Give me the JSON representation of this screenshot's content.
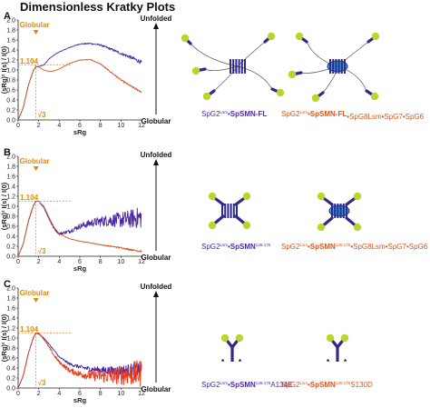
{
  "figure_title": "Dimensionless Kratky Plots",
  "labels": {
    "unfolded": "Unfolded",
    "globular": "Globular",
    "globular_marker": "Globular",
    "peak_x": "√3",
    "peak_y": "1.104",
    "xlabel": "sRg",
    "ylabel": "(sRg)² I(s) / I(0)"
  },
  "colors": {
    "series_blue": "#4b2aa3",
    "series_red_a": "#d4581c",
    "series_red_b": "#e8381d",
    "annotation": "#e08a12",
    "axis": "#222222",
    "molecule_blue": "#2e2a8c",
    "molecule_green": "#b9d62f",
    "molecule_cyan": "#2ba6d8"
  },
  "chart_data": [
    {
      "panel": "A",
      "type": "line",
      "xlabel": "sRg",
      "ylabel": "(sRg)² I(s) / I(0)",
      "xlim": [
        0,
        12
      ],
      "ylim": [
        0,
        2.0
      ],
      "xticks": [
        "0",
        "2",
        "4",
        "6",
        "8",
        "10",
        "12"
      ],
      "yticks": [
        "0.0",
        "0.2",
        "0.4",
        "0.6",
        "0.8",
        "1.0",
        "1.2",
        "1.4",
        "1.6",
        "1.8",
        "2.0"
      ],
      "series": [
        {
          "name": "SpG2-SpSMN-FL",
          "color": "#4b2aa3",
          "noise": 0.05,
          "noise_growth": 0.8,
          "x": [
            0,
            0.5,
            1,
            1.5,
            1.73,
            2,
            2.5,
            3,
            3.5,
            4,
            5,
            6,
            7,
            8,
            9,
            10,
            11,
            12
          ],
          "y": [
            0,
            0.25,
            0.7,
            1.0,
            1.06,
            1.07,
            1.1,
            1.22,
            1.3,
            1.36,
            1.45,
            1.52,
            1.53,
            1.5,
            1.42,
            1.33,
            1.25,
            1.15
          ]
        },
        {
          "name": "SpG2-SpSMN-FL-SpG8-SpG7-SpG6",
          "color": "#d4581c",
          "noise": 0.015,
          "noise_growth": 1.5,
          "x": [
            0,
            0.5,
            1,
            1.5,
            1.73,
            2,
            2.5,
            3,
            3.5,
            4,
            5,
            6,
            7,
            8,
            9,
            10,
            11,
            12
          ],
          "y": [
            0,
            0.25,
            0.7,
            1.0,
            1.07,
            1.06,
            1.0,
            0.97,
            0.98,
            1.02,
            1.13,
            1.2,
            1.21,
            1.12,
            0.96,
            0.8,
            0.67,
            0.56
          ]
        }
      ]
    },
    {
      "panel": "B",
      "type": "line",
      "xlabel": "sRg",
      "ylabel": "(sRg)² I(s) / I(0)",
      "xlim": [
        0,
        12
      ],
      "ylim": [
        0,
        2.0
      ],
      "xticks": [
        "0",
        "2",
        "4",
        "6",
        "8",
        "10",
        "12"
      ],
      "yticks": [
        "0.0",
        "0.2",
        "0.4",
        "0.6",
        "0.8",
        "1.0",
        "1.2",
        "1.4",
        "1.6",
        "1.8",
        "2.0"
      ],
      "series": [
        {
          "name": "SpG2-SpSMN(136-175)",
          "color": "#4b2aa3",
          "noise": 0.07,
          "noise_growth": 3.2,
          "x": [
            0,
            0.5,
            1,
            1.5,
            1.73,
            2,
            2.5,
            3,
            3.5,
            4,
            5,
            6,
            7,
            8,
            9,
            10,
            11,
            12
          ],
          "y": [
            0,
            0.25,
            0.7,
            1.02,
            1.1,
            1.1,
            0.98,
            0.75,
            0.55,
            0.45,
            0.5,
            0.6,
            0.66,
            0.7,
            0.72,
            0.73,
            0.75,
            0.78
          ]
        },
        {
          "name": "SpG2-SpSMN(136-175)-SpG8-SpG7-SpG6",
          "color": "#d4581c",
          "noise": 0.02,
          "noise_growth": 1.0,
          "x": [
            0,
            0.5,
            1,
            1.5,
            1.73,
            2,
            2.5,
            3,
            3.5,
            4,
            5,
            6,
            7,
            8,
            9,
            10,
            11,
            12
          ],
          "y": [
            0,
            0.25,
            0.72,
            1.03,
            1.1,
            1.1,
            1.0,
            0.78,
            0.58,
            0.45,
            0.35,
            0.3,
            0.27,
            0.23,
            0.2,
            0.17,
            0.13,
            0.1
          ]
        }
      ]
    },
    {
      "panel": "C",
      "type": "line",
      "xlabel": "sRg",
      "ylabel": "(sRg)² I(s) / I(0)",
      "xlim": [
        0,
        12
      ],
      "ylim": [
        0,
        2.0
      ],
      "xticks": [
        "0",
        "2",
        "4",
        "6",
        "8",
        "10",
        "12"
      ],
      "yticks": [
        "0.0",
        "0.2",
        "0.4",
        "0.6",
        "0.8",
        "1.0",
        "1.2",
        "1.4",
        "1.6",
        "1.8",
        "2.0"
      ],
      "series": [
        {
          "name": "SpG2-SpSMN(136-175)A134E",
          "color": "#4b2aa3",
          "noise": 0.05,
          "noise_growth": 3.0,
          "x": [
            0,
            0.5,
            1,
            1.5,
            1.73,
            2,
            2.5,
            3,
            3.5,
            4,
            5,
            6,
            7,
            8,
            9,
            10,
            11,
            12
          ],
          "y": [
            0,
            0.25,
            0.7,
            1.02,
            1.1,
            1.08,
            1.0,
            0.88,
            0.75,
            0.62,
            0.48,
            0.42,
            0.38,
            0.36,
            0.35,
            0.35,
            0.36,
            0.38
          ]
        },
        {
          "name": "SpG2-SpSMN(136-175)S130D",
          "color": "#e8381d",
          "noise": 0.08,
          "noise_growth": 3.5,
          "x": [
            0,
            0.5,
            1,
            1.5,
            1.73,
            2,
            2.5,
            3,
            3.5,
            4,
            5,
            6,
            7,
            8,
            9,
            10,
            11,
            12
          ],
          "y": [
            0,
            0.25,
            0.7,
            1.02,
            1.1,
            1.1,
            0.98,
            0.82,
            0.65,
            0.52,
            0.35,
            0.28,
            0.25,
            0.24,
            0.24,
            0.26,
            0.28,
            0.3
          ]
        }
      ]
    }
  ],
  "captions": [
    {
      "panel": "A",
      "left": {
        "pre": "SpG2",
        "sup": "Lsm",
        "mid": "•",
        "bold": "SpSMN-FL",
        "sup2": "",
        "post": ""
      },
      "right": {
        "pre": "SpG2",
        "sup": "Lsm",
        "mid": "•",
        "bold": "SpSMN-FL",
        "sup2": "",
        "post": "•SpG8Lsm•SpG7•SpG6"
      }
    },
    {
      "panel": "B",
      "left": {
        "pre": "SpG2",
        "sup": "Lsm",
        "mid": "•",
        "bold": "SpSMN",
        "sup2": "136-175",
        "post": ""
      },
      "right": {
        "pre": "SpG2",
        "sup": "Lsm",
        "mid": "•",
        "bold": "SpSMN",
        "sup2": "136-175",
        "post": "•SpG8Lsm•SpG7•SpG6"
      }
    },
    {
      "panel": "C",
      "left": {
        "pre": "SpG2",
        "sup": "Lsm",
        "mid": "•",
        "bold": "SpSMN",
        "sup2": "136-175",
        "post": "A134E"
      },
      "right": {
        "pre": "SpG2",
        "sup": "Lsm",
        "mid": "•",
        "bold": "SpSMN",
        "sup2": "136-175",
        "post": "S130D"
      }
    }
  ]
}
